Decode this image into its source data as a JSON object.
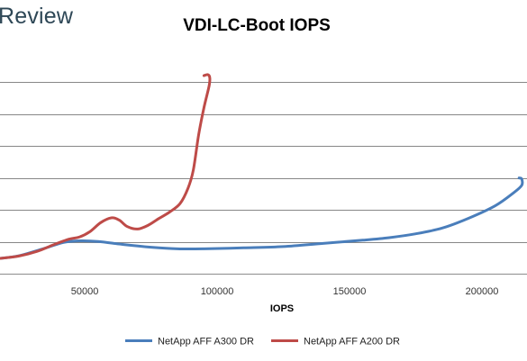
{
  "header": {
    "brand": "Review"
  },
  "chart_data": {
    "type": "line",
    "title": "VDI-LC-Boot IOPS",
    "xlabel": "IOPS",
    "ylabel": "",
    "xlim": [
      18000,
      217000
    ],
    "ylim": [
      0,
      70
    ],
    "x_ticks": [
      50000,
      100000,
      150000,
      200000
    ],
    "y_gridlines": [
      0,
      10,
      20,
      30,
      40,
      50,
      60
    ],
    "grid": "horizontal",
    "legend": "bottom",
    "series": [
      {
        "name": "NetApp AFF A300 DR",
        "color": "#4a7ebb",
        "points": [
          [
            18000,
            4.8
          ],
          [
            25000,
            5.6
          ],
          [
            35000,
            8.0
          ],
          [
            42000,
            9.8
          ],
          [
            48000,
            10.3
          ],
          [
            55000,
            10.1
          ],
          [
            65000,
            9.1
          ],
          [
            75000,
            8.3
          ],
          [
            85000,
            7.8
          ],
          [
            95000,
            7.8
          ],
          [
            110000,
            8.1
          ],
          [
            125000,
            8.5
          ],
          [
            140000,
            9.5
          ],
          [
            155000,
            10.5
          ],
          [
            165000,
            11.3
          ],
          [
            175000,
            12.5
          ],
          [
            185000,
            14.3
          ],
          [
            195000,
            17.4
          ],
          [
            205000,
            21.3
          ],
          [
            212000,
            25.4
          ],
          [
            215000,
            27.7
          ],
          [
            215000,
            29.7
          ],
          [
            214000,
            30.0
          ]
        ]
      },
      {
        "name": "NetApp AFF A200 DR",
        "color": "#be4b48",
        "points": [
          [
            18000,
            4.8
          ],
          [
            25000,
            5.5
          ],
          [
            32000,
            7.0
          ],
          [
            38000,
            9.0
          ],
          [
            44000,
            10.8
          ],
          [
            48000,
            11.5
          ],
          [
            52000,
            13.2
          ],
          [
            56000,
            16.0
          ],
          [
            60000,
            17.5
          ],
          [
            63000,
            16.8
          ],
          [
            66000,
            14.8
          ],
          [
            70000,
            14.0
          ],
          [
            74000,
            15.2
          ],
          [
            78000,
            17.3
          ],
          [
            82000,
            19.3
          ],
          [
            86000,
            22.0
          ],
          [
            89000,
            26.8
          ],
          [
            91000,
            32.5
          ],
          [
            93000,
            43.5
          ],
          [
            95000,
            52.0
          ],
          [
            97000,
            59.0
          ],
          [
            97200,
            61.5
          ],
          [
            96500,
            62.4
          ],
          [
            95000,
            62.1
          ]
        ]
      }
    ]
  }
}
